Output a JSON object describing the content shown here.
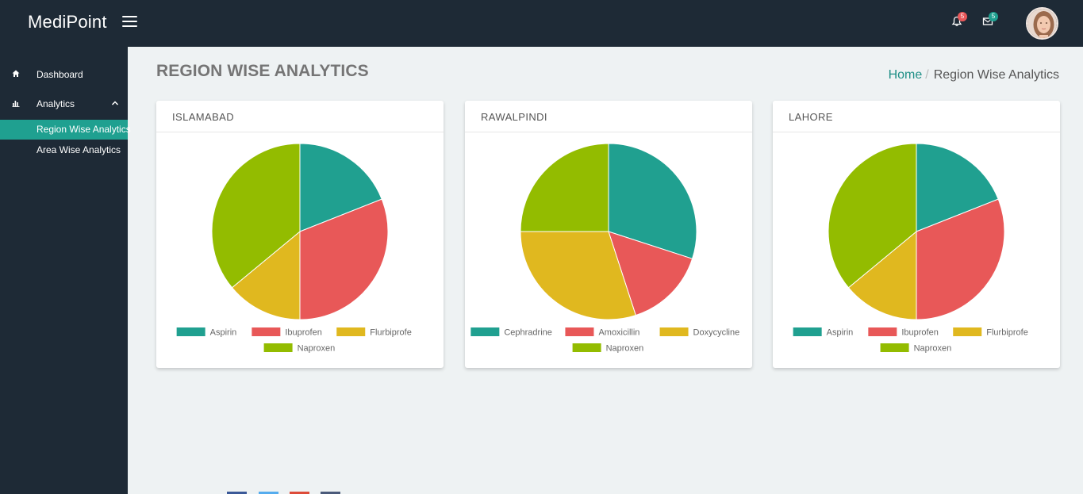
{
  "app": {
    "brand": "MediPoint",
    "notifications_count": "5",
    "messages_count": "5"
  },
  "sidebar": {
    "items": [
      {
        "label": "Dashboard",
        "icon": "home-icon"
      },
      {
        "label": "Analytics",
        "icon": "bar-chart-icon",
        "expanded": true,
        "children": [
          {
            "label": "Region Wise Analytics",
            "active": true
          },
          {
            "label": "Area Wise Analytics",
            "active": false
          }
        ]
      }
    ]
  },
  "page": {
    "title": "REGION WISE ANALYTICS",
    "breadcrumb": {
      "home": "Home",
      "current": "Region Wise Analytics"
    }
  },
  "colors": {
    "teal": "#20a090",
    "red": "#e85858",
    "yellow": "#e0b81f",
    "green": "#93bc00"
  },
  "chart_data": [
    {
      "type": "pie",
      "title": "ISLAMABAD",
      "categories": [
        "Aspirin",
        "Ibuprofen",
        "Flurbiprofe",
        "Naproxen"
      ],
      "values": [
        19,
        31,
        14,
        36
      ],
      "colors": [
        "#20a090",
        "#e85858",
        "#e0b81f",
        "#93bc00"
      ]
    },
    {
      "type": "pie",
      "title": "RAWALPINDI",
      "categories": [
        "Cephradrine",
        "Amoxicillin",
        "Doxycycline",
        "Naproxen"
      ],
      "values": [
        30,
        15,
        30,
        25
      ],
      "colors": [
        "#20a090",
        "#e85858",
        "#e0b81f",
        "#93bc00"
      ]
    },
    {
      "type": "pie",
      "title": "LAHORE",
      "categories": [
        "Aspirin",
        "Ibuprofen",
        "Flurbiprofe",
        "Naproxen"
      ],
      "values": [
        19,
        31,
        14,
        36
      ],
      "colors": [
        "#20a090",
        "#e85858",
        "#e0b81f",
        "#93bc00"
      ]
    }
  ]
}
